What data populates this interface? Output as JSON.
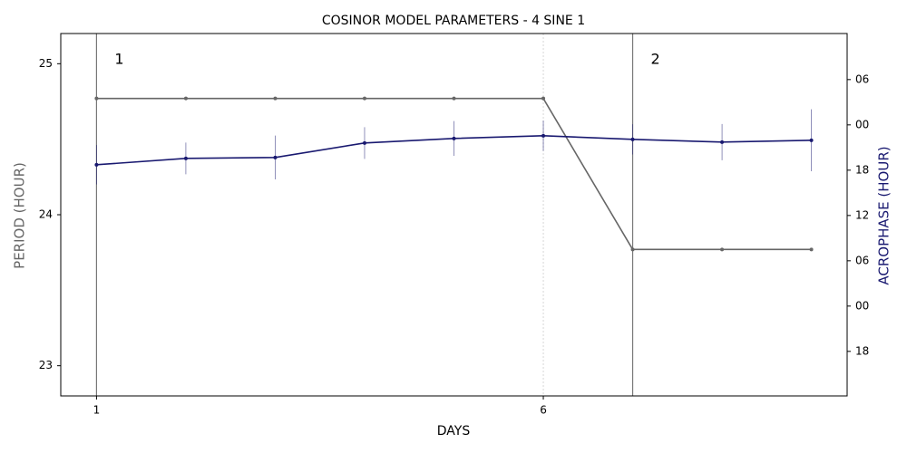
{
  "chart_data": {
    "type": "line",
    "title": "COSINOR MODEL PARAMETERS - 4 SINE 1",
    "xlabel": "DAYS",
    "ylabel": "PERIOD (HOUR)",
    "y2label": "ACROPHASE (HOUR)",
    "x": [
      1,
      2,
      3,
      4,
      5,
      6,
      7,
      8,
      9
    ],
    "xlim": [
      0.6,
      9.4
    ],
    "xticks": [
      1,
      6
    ],
    "ylim": [
      22.8,
      25.2
    ],
    "yticks": [
      23,
      24,
      25
    ],
    "y2lim": [
      -11.9,
      36.1
    ],
    "y2ticks": [
      {
        "value": -6,
        "label": "18"
      },
      {
        "value": 0,
        "label": "00"
      },
      {
        "value": 6,
        "label": "06"
      },
      12,
      18,
      {
        "value": 24,
        "label": "00"
      },
      {
        "value": 30,
        "label": "06"
      }
    ],
    "xgrid": true,
    "annotations": [
      {
        "x": 1,
        "text": "1"
      },
      {
        "x": 7,
        "text": "2"
      }
    ],
    "series": [
      {
        "name": "PERIOD",
        "color": "#666666",
        "values": [
          24.77,
          24.77,
          24.77,
          24.77,
          24.77,
          24.77,
          23.77,
          23.77,
          23.77
        ]
      },
      {
        "name": "ACROPHASE",
        "color": "#191970",
        "axis": "y2",
        "values": [
          18.72,
          19.56,
          19.68,
          21.6,
          22.2,
          22.56,
          22.08,
          21.72,
          21.96
        ],
        "errors": [
          2.6,
          2.1,
          2.9,
          2.1,
          2.3,
          2.0,
          2.0,
          2.4,
          4.1
        ]
      }
    ]
  }
}
